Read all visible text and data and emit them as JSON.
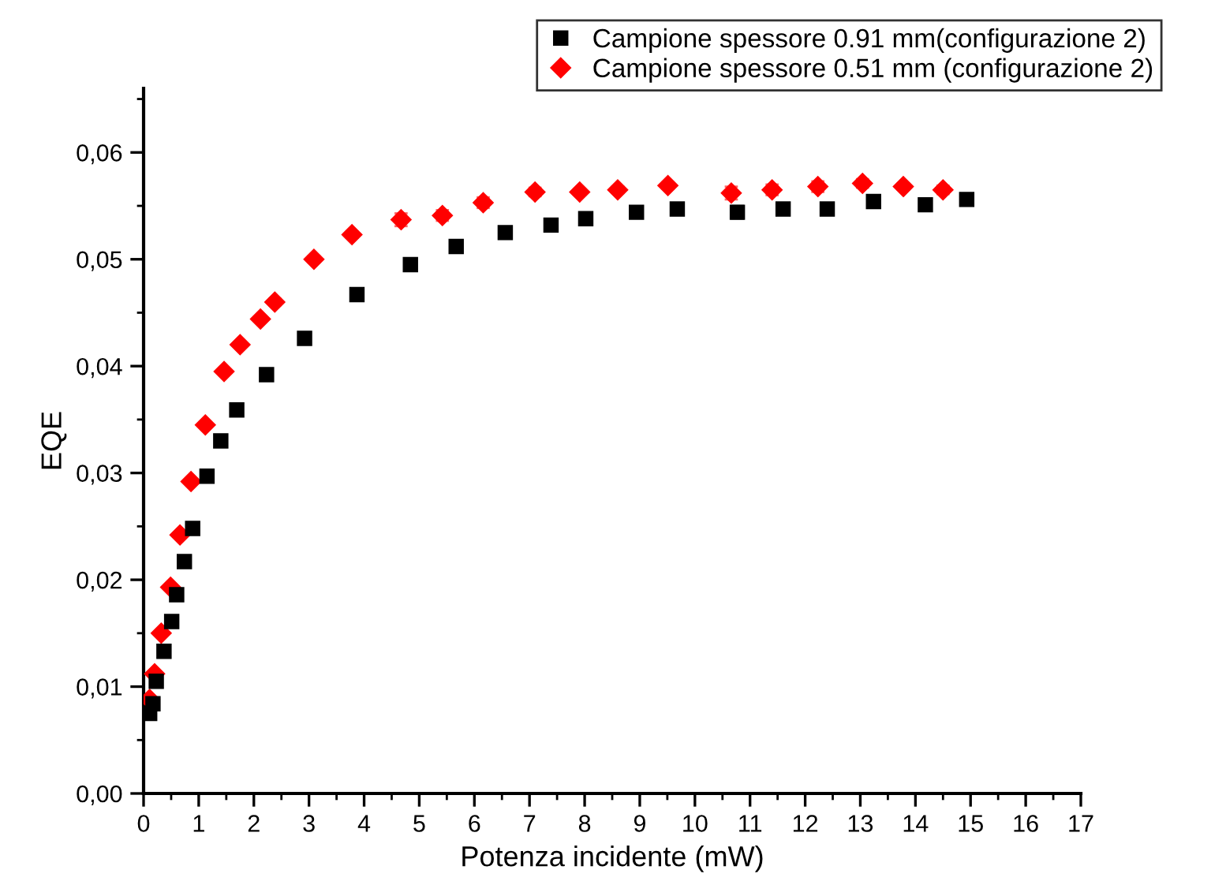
{
  "chart_data": {
    "type": "scatter",
    "xlabel": "Potenza incidente (mW)",
    "ylabel": "EQE",
    "xlim": [
      0,
      17
    ],
    "ylim": [
      0,
      0.066
    ],
    "xticks": [
      0,
      1,
      2,
      3,
      4,
      5,
      6,
      7,
      8,
      9,
      10,
      11,
      12,
      13,
      14,
      15,
      16,
      17
    ],
    "yticks": [
      {
        "value": 0,
        "label": "0,00"
      },
      {
        "value": 0.01,
        "label": "0,01"
      },
      {
        "value": 0.02,
        "label": "0,02"
      },
      {
        "value": 0.03,
        "label": "0,03"
      },
      {
        "value": 0.04,
        "label": "0,04"
      },
      {
        "value": 0.05,
        "label": "0,05"
      },
      {
        "value": 0.06,
        "label": "0,06"
      }
    ],
    "legend": "top right",
    "grid": false,
    "series": [
      {
        "name": "Campione spessore 0.91 mm(configurazione 2)",
        "color": "#000000",
        "marker": "square",
        "x": [
          0.11,
          0.17,
          0.23,
          0.37,
          0.51,
          0.6,
          0.74,
          0.89,
          1.15,
          1.4,
          1.69,
          2.23,
          2.92,
          3.87,
          4.84,
          5.67,
          6.56,
          7.39,
          8.02,
          8.94,
          9.68,
          10.77,
          11.6,
          12.4,
          13.24,
          14.18,
          14.93
        ],
        "values": [
          0.0075,
          0.0084,
          0.0105,
          0.0133,
          0.0161,
          0.0186,
          0.0217,
          0.0248,
          0.0297,
          0.033,
          0.0359,
          0.0392,
          0.0426,
          0.0467,
          0.0495,
          0.0512,
          0.0525,
          0.0532,
          0.0538,
          0.0544,
          0.0547,
          0.0544,
          0.0547,
          0.0547,
          0.0554,
          0.0551,
          0.0556
        ],
        "errors": [
          0.0002,
          0.0002,
          0.0002,
          0.0002,
          0.0002,
          0.0002,
          0.0002,
          0.0002,
          0.0002,
          0.0002,
          0.0002,
          0.0003,
          0.0003,
          0.0003,
          0.0005,
          0.0005,
          0.0004,
          0.0003,
          0.0003,
          0.0003,
          0.0003,
          0.0006,
          0.0005,
          0.0005,
          0.0004,
          0.0003,
          0.0003
        ]
      },
      {
        "name": "Campione spessore 0.51 mm (configurazione 2)",
        "color": "#ff0000",
        "marker": "diamond",
        "x": [
          0.11,
          0.2,
          0.32,
          0.49,
          0.66,
          0.86,
          1.12,
          1.46,
          1.75,
          2.12,
          2.38,
          3.09,
          3.78,
          4.67,
          5.42,
          6.16,
          7.1,
          7.91,
          8.6,
          9.51,
          10.66,
          11.4,
          12.23,
          13.04,
          13.78,
          14.5
        ],
        "values": [
          0.0088,
          0.0112,
          0.015,
          0.0193,
          0.0242,
          0.0292,
          0.0345,
          0.0395,
          0.042,
          0.0444,
          0.046,
          0.05,
          0.0523,
          0.0537,
          0.0541,
          0.0553,
          0.0563,
          0.0563,
          0.0565,
          0.0569,
          0.0562,
          0.0565,
          0.0568,
          0.0571,
          0.0568,
          0.0565
        ],
        "errors": [
          0.0002,
          0.0002,
          0.0002,
          0.0002,
          0.0002,
          0.0002,
          0.0002,
          0.0002,
          0.0002,
          0.0002,
          0.0003,
          0.0003,
          0.0003,
          0.0006,
          0.0005,
          0.0005,
          0.0004,
          0.0003,
          0.0003,
          0.0003,
          0.0006,
          0.0005,
          0.0005,
          0.0004,
          0.0003,
          0.0004
        ]
      }
    ]
  }
}
